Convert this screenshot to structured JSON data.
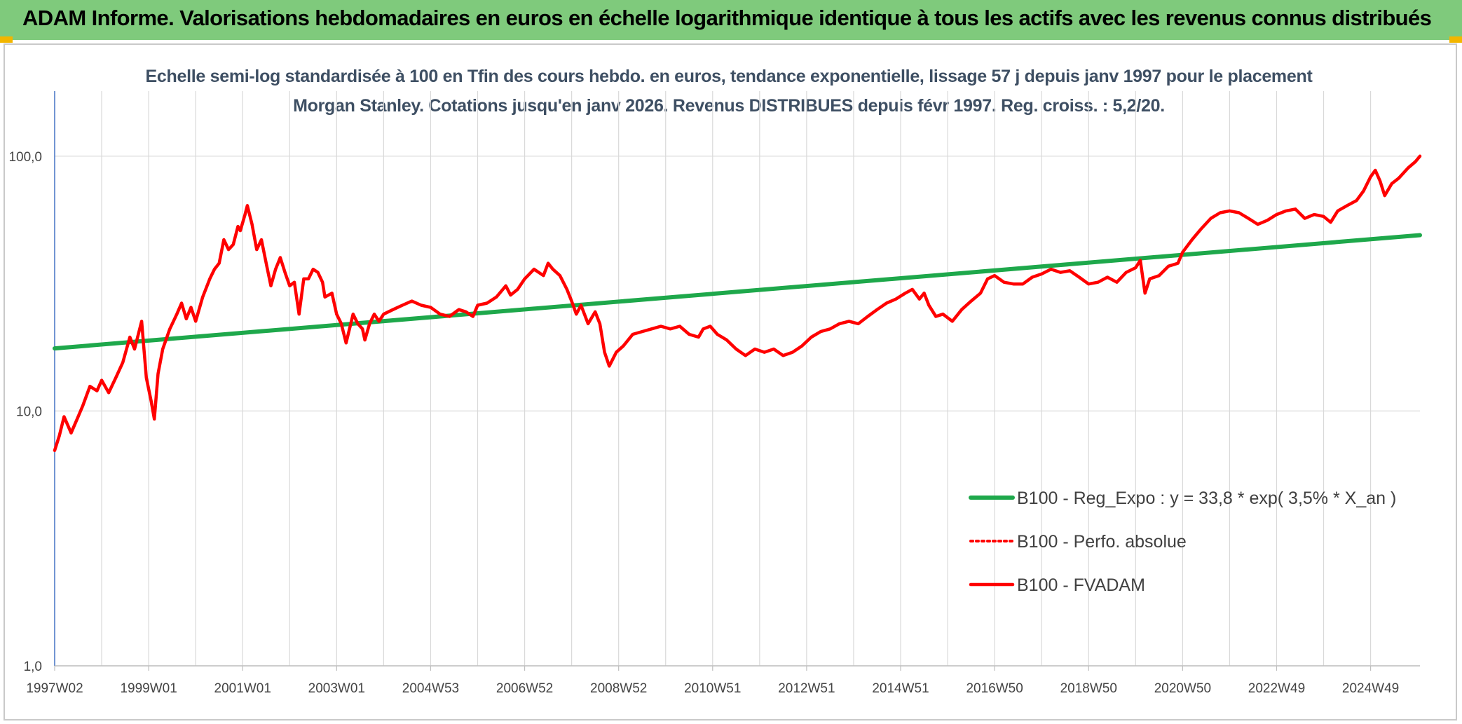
{
  "header": {
    "title": "ADAM Informe. Valorisations hebdomadaires en euros en échelle logarithmique identique à tous les actifs avec les revenus connus distribués",
    "background": "#7fca7c"
  },
  "chart_data": {
    "type": "line",
    "title": "Echelle semi-log standardisée à 100 en Tfin des cours hebdo. en euros, tendance exponentielle, lissage 57 j depuis janv 1997 pour le placement Morgan Stanley. Cotations jusqu'en janv 2026. Revenus DISTRIBUES depuis févr 1997. Reg. croiss. : 5,2/20.",
    "xlabel": "",
    "ylabel": "",
    "y_scale": "log",
    "ylim": [
      1,
      180
    ],
    "xlim": [
      1997.0,
      2026.05
    ],
    "grid": true,
    "legend_position": "bottom-right",
    "y_ticks": [
      {
        "value": 1,
        "label": "1,0"
      },
      {
        "value": 10,
        "label": "10,0"
      },
      {
        "value": 100,
        "label": "100,0"
      }
    ],
    "x_ticks": [
      {
        "value": 1997.0,
        "label": "1997W02"
      },
      {
        "value": 1999.0,
        "label": "1999W01"
      },
      {
        "value": 2001.0,
        "label": "2001W01"
      },
      {
        "value": 2003.0,
        "label": "2003W01"
      },
      {
        "value": 2005.0,
        "label": "2004W53"
      },
      {
        "value": 2007.0,
        "label": "2006W52"
      },
      {
        "value": 2009.0,
        "label": "2008W52"
      },
      {
        "value": 2011.0,
        "label": "2010W51"
      },
      {
        "value": 2013.0,
        "label": "2012W51"
      },
      {
        "value": 2015.0,
        "label": "2014W51"
      },
      {
        "value": 2017.0,
        "label": "2016W50"
      },
      {
        "value": 2019.0,
        "label": "2018W50"
      },
      {
        "value": 2021.0,
        "label": "2020W50"
      },
      {
        "value": 2023.0,
        "label": "2022W49"
      },
      {
        "value": 2025.0,
        "label": "2024W49"
      }
    ],
    "series": [
      {
        "name": "B100 - Reg_Expo : y = 33,8 * exp( 3,5% *  X_an )",
        "color": "#1ea84b",
        "style": "solid",
        "points": [
          [
            1997.0,
            17.6
          ],
          [
            2026.05,
            49.0
          ]
        ]
      },
      {
        "name": "B100 - Perfo. absolue",
        "color": "#ff0000",
        "style": "dotted",
        "points": []
      },
      {
        "name": "B100 - FVADAM",
        "color": "#ff0000",
        "style": "solid",
        "points": [
          [
            1997.0,
            7.0
          ],
          [
            1997.1,
            8.0
          ],
          [
            1997.2,
            9.5
          ],
          [
            1997.35,
            8.2
          ],
          [
            1997.5,
            9.5
          ],
          [
            1997.6,
            10.5
          ],
          [
            1997.75,
            12.5
          ],
          [
            1997.9,
            12.0
          ],
          [
            1998.0,
            13.2
          ],
          [
            1998.15,
            11.8
          ],
          [
            1998.3,
            13.5
          ],
          [
            1998.45,
            15.5
          ],
          [
            1998.6,
            19.5
          ],
          [
            1998.7,
            17.5
          ],
          [
            1998.85,
            22.5
          ],
          [
            1998.95,
            13.5
          ],
          [
            1999.05,
            11.0
          ],
          [
            1999.12,
            9.3
          ],
          [
            1999.2,
            14.0
          ],
          [
            1999.3,
            17.5
          ],
          [
            1999.45,
            21.0
          ],
          [
            1999.6,
            24.0
          ],
          [
            1999.7,
            26.5
          ],
          [
            1999.8,
            23.0
          ],
          [
            1999.9,
            25.5
          ],
          [
            2000.0,
            22.5
          ],
          [
            2000.15,
            28.0
          ],
          [
            2000.3,
            33.0
          ],
          [
            2000.4,
            36.0
          ],
          [
            2000.5,
            38.0
          ],
          [
            2000.6,
            47.0
          ],
          [
            2000.7,
            43.0
          ],
          [
            2000.8,
            45.0
          ],
          [
            2000.9,
            53.0
          ],
          [
            2000.95,
            51.0
          ],
          [
            2001.05,
            59.0
          ],
          [
            2001.1,
            64.0
          ],
          [
            2001.2,
            54.0
          ],
          [
            2001.3,
            43.0
          ],
          [
            2001.4,
            47.0
          ],
          [
            2001.5,
            38.0
          ],
          [
            2001.6,
            31.0
          ],
          [
            2001.7,
            36.0
          ],
          [
            2001.8,
            40.0
          ],
          [
            2001.9,
            35.0
          ],
          [
            2002.0,
            31.0
          ],
          [
            2002.1,
            32.0
          ],
          [
            2002.2,
            24.0
          ],
          [
            2002.3,
            33.0
          ],
          [
            2002.4,
            33.0
          ],
          [
            2002.5,
            36.0
          ],
          [
            2002.6,
            35.0
          ],
          [
            2002.7,
            32.0
          ],
          [
            2002.75,
            28.0
          ],
          [
            2002.9,
            29.0
          ],
          [
            2003.0,
            24.0
          ],
          [
            2003.1,
            22.0
          ],
          [
            2003.2,
            18.5
          ],
          [
            2003.35,
            24.0
          ],
          [
            2003.45,
            22.0
          ],
          [
            2003.55,
            21.0
          ],
          [
            2003.6,
            19.0
          ],
          [
            2003.7,
            22.0
          ],
          [
            2003.8,
            24.0
          ],
          [
            2003.9,
            22.5
          ],
          [
            2004.0,
            24.0
          ],
          [
            2004.2,
            25.0
          ],
          [
            2004.4,
            26.0
          ],
          [
            2004.6,
            27.0
          ],
          [
            2004.8,
            26.0
          ],
          [
            2005.0,
            25.5
          ],
          [
            2005.2,
            24.0
          ],
          [
            2005.4,
            23.5
          ],
          [
            2005.6,
            25.0
          ],
          [
            2005.75,
            24.5
          ],
          [
            2005.9,
            23.5
          ],
          [
            2006.0,
            26.0
          ],
          [
            2006.2,
            26.5
          ],
          [
            2006.4,
            28.0
          ],
          [
            2006.6,
            31.0
          ],
          [
            2006.7,
            28.5
          ],
          [
            2006.85,
            30.0
          ],
          [
            2007.0,
            33.0
          ],
          [
            2007.2,
            36.0
          ],
          [
            2007.4,
            34.0
          ],
          [
            2007.5,
            38.0
          ],
          [
            2007.6,
            36.0
          ],
          [
            2007.75,
            34.0
          ],
          [
            2007.9,
            30.0
          ],
          [
            2008.0,
            27.0
          ],
          [
            2008.1,
            24.0
          ],
          [
            2008.2,
            26.0
          ],
          [
            2008.35,
            22.0
          ],
          [
            2008.5,
            24.5
          ],
          [
            2008.6,
            22.0
          ],
          [
            2008.7,
            17.0
          ],
          [
            2008.8,
            15.0
          ],
          [
            2008.95,
            17.0
          ],
          [
            2009.1,
            18.0
          ],
          [
            2009.3,
            20.0
          ],
          [
            2009.5,
            20.5
          ],
          [
            2009.7,
            21.0
          ],
          [
            2009.9,
            21.5
          ],
          [
            2010.1,
            21.0
          ],
          [
            2010.3,
            21.5
          ],
          [
            2010.5,
            20.0
          ],
          [
            2010.7,
            19.5
          ],
          [
            2010.8,
            21.0
          ],
          [
            2010.95,
            21.5
          ],
          [
            2011.1,
            20.0
          ],
          [
            2011.3,
            19.0
          ],
          [
            2011.5,
            17.5
          ],
          [
            2011.7,
            16.5
          ],
          [
            2011.9,
            17.5
          ],
          [
            2012.1,
            17.0
          ],
          [
            2012.3,
            17.5
          ],
          [
            2012.5,
            16.5
          ],
          [
            2012.7,
            17.0
          ],
          [
            2012.9,
            18.0
          ],
          [
            2013.1,
            19.5
          ],
          [
            2013.3,
            20.5
          ],
          [
            2013.5,
            21.0
          ],
          [
            2013.7,
            22.0
          ],
          [
            2013.9,
            22.5
          ],
          [
            2014.1,
            22.0
          ],
          [
            2014.3,
            23.5
          ],
          [
            2014.5,
            25.0
          ],
          [
            2014.7,
            26.5
          ],
          [
            2014.9,
            27.5
          ],
          [
            2015.1,
            29.0
          ],
          [
            2015.25,
            30.0
          ],
          [
            2015.4,
            27.5
          ],
          [
            2015.5,
            29.0
          ],
          [
            2015.6,
            26.0
          ],
          [
            2015.75,
            23.5
          ],
          [
            2015.9,
            24.0
          ],
          [
            2016.1,
            22.5
          ],
          [
            2016.3,
            25.0
          ],
          [
            2016.5,
            27.0
          ],
          [
            2016.7,
            29.0
          ],
          [
            2016.85,
            33.0
          ],
          [
            2017.0,
            34.0
          ],
          [
            2017.2,
            32.0
          ],
          [
            2017.4,
            31.5
          ],
          [
            2017.6,
            31.5
          ],
          [
            2017.8,
            33.5
          ],
          [
            2018.0,
            34.5
          ],
          [
            2018.2,
            36.0
          ],
          [
            2018.4,
            35.0
          ],
          [
            2018.6,
            35.5
          ],
          [
            2018.8,
            33.5
          ],
          [
            2019.0,
            31.5
          ],
          [
            2019.2,
            32.0
          ],
          [
            2019.4,
            33.5
          ],
          [
            2019.6,
            32.0
          ],
          [
            2019.8,
            35.0
          ],
          [
            2020.0,
            36.5
          ],
          [
            2020.1,
            39.0
          ],
          [
            2020.2,
            29.0
          ],
          [
            2020.3,
            33.0
          ],
          [
            2020.5,
            34.0
          ],
          [
            2020.7,
            37.0
          ],
          [
            2020.9,
            38.0
          ],
          [
            2021.0,
            42.0
          ],
          [
            2021.2,
            47.0
          ],
          [
            2021.4,
            52.0
          ],
          [
            2021.6,
            57.0
          ],
          [
            2021.8,
            60.0
          ],
          [
            2022.0,
            61.0
          ],
          [
            2022.2,
            60.0
          ],
          [
            2022.4,
            57.0
          ],
          [
            2022.6,
            54.0
          ],
          [
            2022.8,
            56.0
          ],
          [
            2023.0,
            59.0
          ],
          [
            2023.2,
            61.0
          ],
          [
            2023.4,
            62.0
          ],
          [
            2023.6,
            57.0
          ],
          [
            2023.8,
            59.0
          ],
          [
            2024.0,
            58.0
          ],
          [
            2024.15,
            55.0
          ],
          [
            2024.3,
            61.0
          ],
          [
            2024.5,
            64.0
          ],
          [
            2024.7,
            67.0
          ],
          [
            2024.85,
            73.0
          ],
          [
            2025.0,
            83.0
          ],
          [
            2025.1,
            88.0
          ],
          [
            2025.2,
            80.0
          ],
          [
            2025.3,
            70.0
          ],
          [
            2025.45,
            78.0
          ],
          [
            2025.6,
            82.0
          ],
          [
            2025.8,
            90.0
          ],
          [
            2025.95,
            95.0
          ],
          [
            2026.05,
            100.0
          ]
        ]
      }
    ]
  }
}
